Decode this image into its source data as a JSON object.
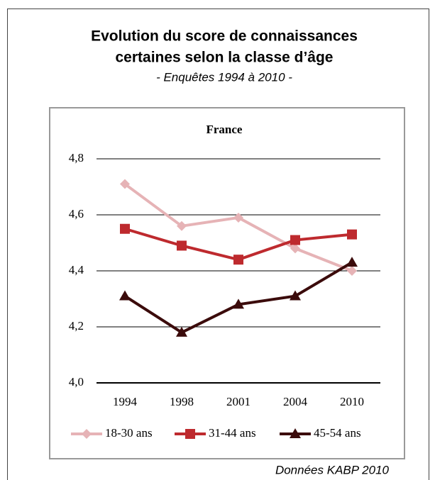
{
  "chart_data": {
    "type": "line",
    "title": [
      "Evolution du score de connaissances",
      "certaines selon la classe d’âge"
    ],
    "subtitle": "- Enquêtes 1994 à 2010 -",
    "chart_title": "France",
    "categories": [
      "1994",
      "1998",
      "2001",
      "2004",
      "2010"
    ],
    "series": [
      {
        "name": "18-30 ans",
        "color": "#e6b3b6",
        "marker": "diamond",
        "values": [
          4.71,
          4.56,
          4.59,
          4.48,
          4.4
        ]
      },
      {
        "name": "31-44 ans",
        "color": "#be2a2e",
        "marker": "square",
        "values": [
          4.55,
          4.49,
          4.44,
          4.51,
          4.53
        ]
      },
      {
        "name": "45-54 ans",
        "color": "#3b0b0b",
        "marker": "triangle",
        "values": [
          4.31,
          4.18,
          4.28,
          4.31,
          4.43
        ]
      }
    ],
    "ylim": [
      4.0,
      4.8
    ],
    "yticks": [
      {
        "value": 4.0,
        "label": "4,0"
      },
      {
        "value": 4.2,
        "label": "4,2"
      },
      {
        "value": 4.4,
        "label": "4,4"
      },
      {
        "value": 4.6,
        "label": "4,6"
      },
      {
        "value": 4.8,
        "label": "4,8"
      }
    ],
    "grid": true,
    "legend": "bottom",
    "source": "Données KABP 2010"
  }
}
